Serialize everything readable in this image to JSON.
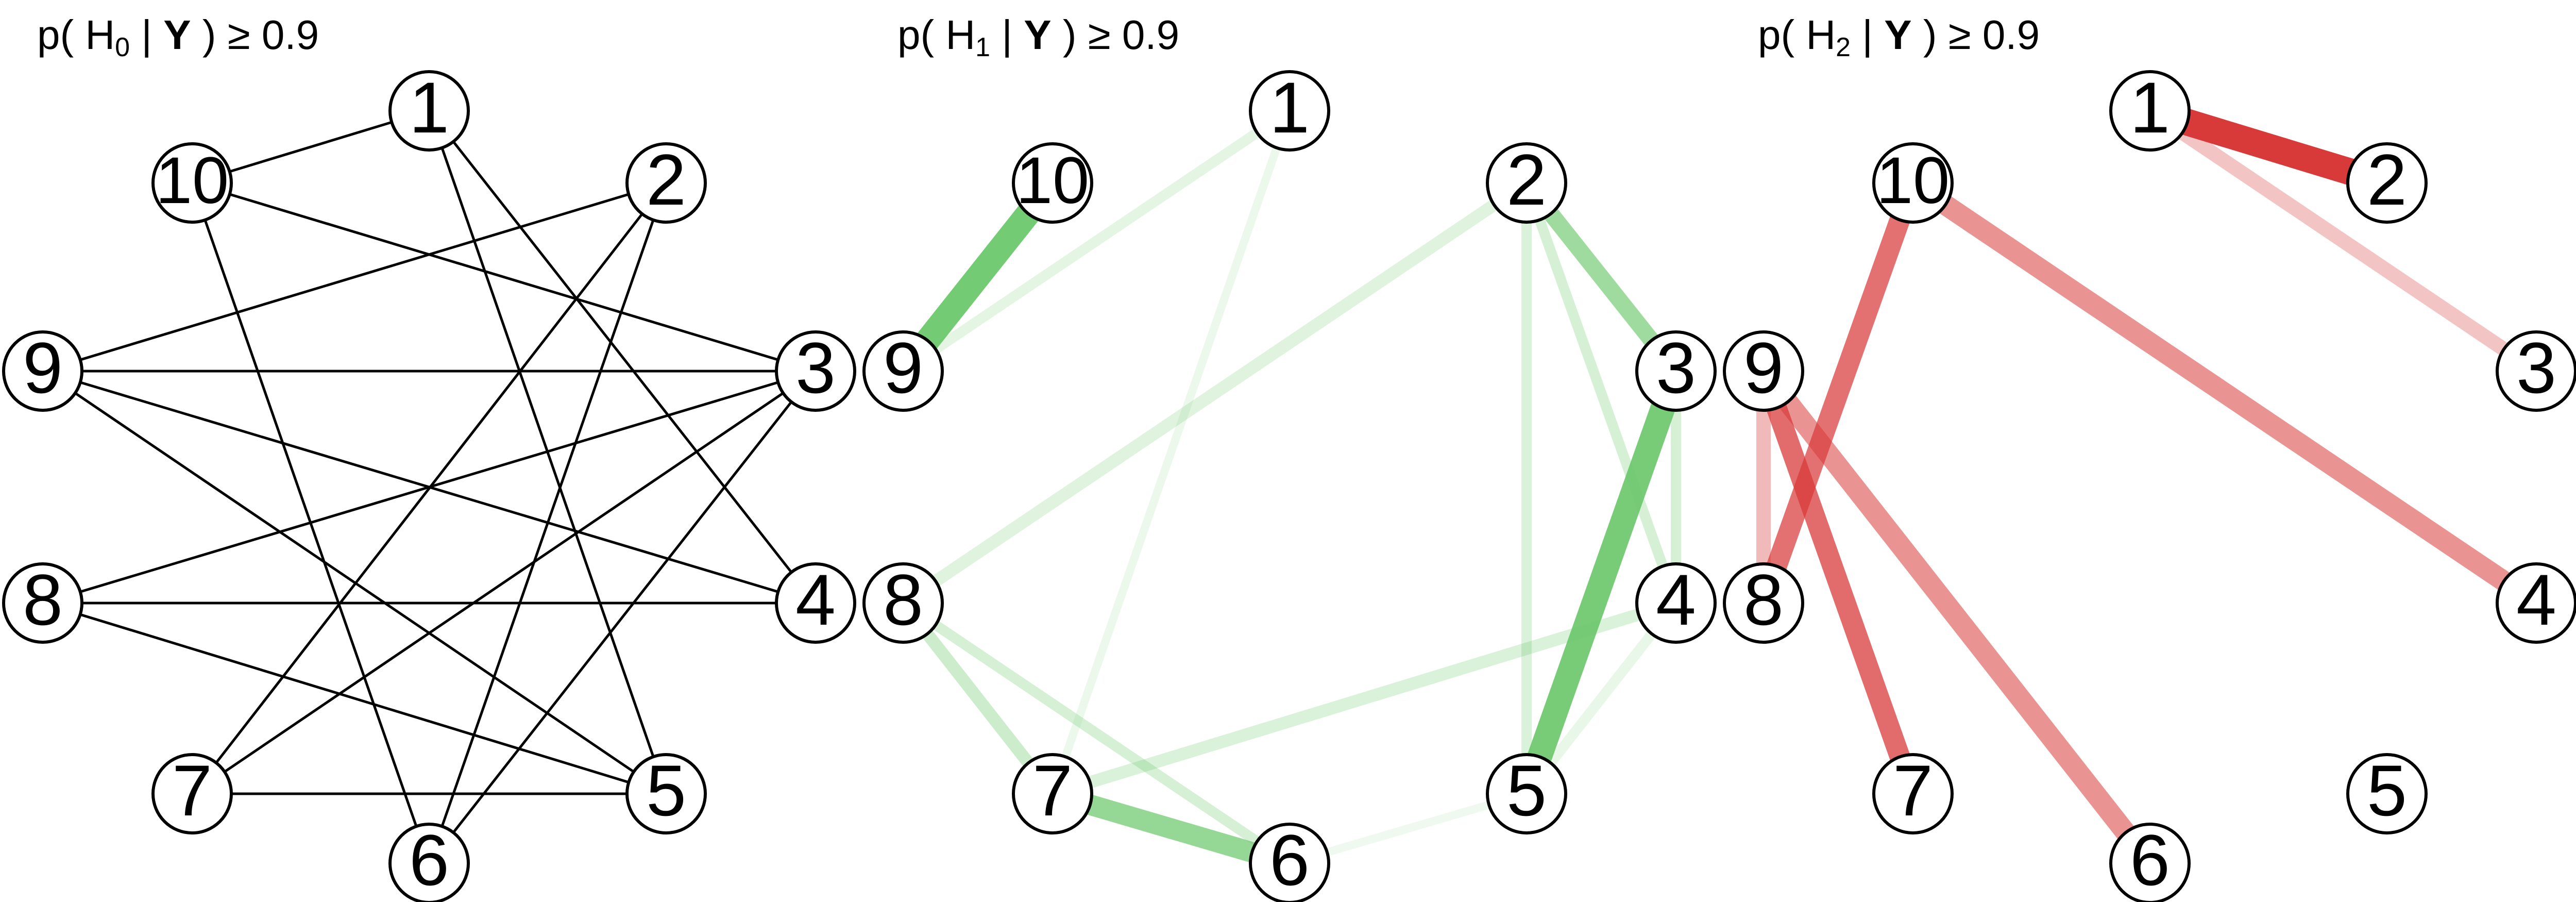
{
  "panels": [
    {
      "id": "h0",
      "title": {
        "prefix": "p( H",
        "sub": "0",
        "mid": " | ",
        "bold": "Y",
        "suffix": " ) ≥ 0.9"
      },
      "edge_color": "#000000",
      "edges": [
        {
          "a": "1",
          "b": "10",
          "w": 1,
          "o": 1
        },
        {
          "a": "1",
          "b": "4",
          "w": 1,
          "o": 1
        },
        {
          "a": "1",
          "b": "5",
          "w": 1,
          "o": 1
        },
        {
          "a": "10",
          "b": "3",
          "w": 1,
          "o": 1
        },
        {
          "a": "10",
          "b": "6",
          "w": 1,
          "o": 1
        },
        {
          "a": "2",
          "b": "9",
          "w": 1,
          "o": 1
        },
        {
          "a": "2",
          "b": "7",
          "w": 1,
          "o": 1
        },
        {
          "a": "2",
          "b": "6",
          "w": 1,
          "o": 1
        },
        {
          "a": "9",
          "b": "3",
          "w": 1,
          "o": 1
        },
        {
          "a": "9",
          "b": "4",
          "w": 1,
          "o": 1
        },
        {
          "a": "9",
          "b": "5",
          "w": 1,
          "o": 1
        },
        {
          "a": "8",
          "b": "3",
          "w": 1,
          "o": 1
        },
        {
          "a": "8",
          "b": "4",
          "w": 1,
          "o": 1
        },
        {
          "a": "8",
          "b": "5",
          "w": 1,
          "o": 1
        },
        {
          "a": "7",
          "b": "3",
          "w": 1,
          "o": 1
        },
        {
          "a": "7",
          "b": "5",
          "w": 1,
          "o": 1
        },
        {
          "a": "6",
          "b": "3",
          "w": 1,
          "o": 1
        }
      ]
    },
    {
      "id": "h1",
      "title": {
        "prefix": "p( H",
        "sub": "1",
        "mid": " | ",
        "bold": "Y",
        "suffix": " ) ≥ 0.9"
      },
      "edge_color": "#6cc86c",
      "edges": [
        {
          "a": "10",
          "b": "9",
          "w": 12,
          "o": 0.95
        },
        {
          "a": "1",
          "b": "9",
          "w": 5,
          "o": 0.18
        },
        {
          "a": "1",
          "b": "7",
          "w": 4,
          "o": 0.12
        },
        {
          "a": "2",
          "b": "8",
          "w": 6,
          "o": 0.22
        },
        {
          "a": "2",
          "b": "3",
          "w": 8,
          "o": 0.65
        },
        {
          "a": "2",
          "b": "5",
          "w": 5,
          "o": 0.25
        },
        {
          "a": "2",
          "b": "4",
          "w": 5,
          "o": 0.28
        },
        {
          "a": "3",
          "b": "4",
          "w": 5,
          "o": 0.28
        },
        {
          "a": "3",
          "b": "5",
          "w": 12,
          "o": 0.92
        },
        {
          "a": "4",
          "b": "7",
          "w": 6,
          "o": 0.25
        },
        {
          "a": "4",
          "b": "5",
          "w": 5,
          "o": 0.15
        },
        {
          "a": "8",
          "b": "7",
          "w": 6,
          "o": 0.35
        },
        {
          "a": "8",
          "b": "6",
          "w": 5,
          "o": 0.28
        },
        {
          "a": "7",
          "b": "6",
          "w": 10,
          "o": 0.72
        },
        {
          "a": "6",
          "b": "5",
          "w": 4,
          "o": 0.1
        }
      ]
    },
    {
      "id": "h2",
      "title": {
        "prefix": "p( H",
        "sub": "2",
        "mid": " | ",
        "bold": "Y",
        "suffix": " ) ≥ 0.9"
      },
      "edge_color": "#d83a3a",
      "edges": [
        {
          "a": "1",
          "b": "2",
          "w": 13,
          "o": 1
        },
        {
          "a": "1",
          "b": "3",
          "w": 7,
          "o": 0.3
        },
        {
          "a": "10",
          "b": "8",
          "w": 10,
          "o": 0.72
        },
        {
          "a": "10",
          "b": "4",
          "w": 10,
          "o": 0.55
        },
        {
          "a": "9",
          "b": "8",
          "w": 7,
          "o": 0.35
        },
        {
          "a": "9",
          "b": "7",
          "w": 10,
          "o": 0.75
        },
        {
          "a": "9",
          "b": "6",
          "w": 10,
          "o": 0.55
        }
      ]
    }
  ],
  "node_labels": [
    "1",
    "2",
    "3",
    "4",
    "5",
    "6",
    "7",
    "8",
    "9",
    "10"
  ]
}
